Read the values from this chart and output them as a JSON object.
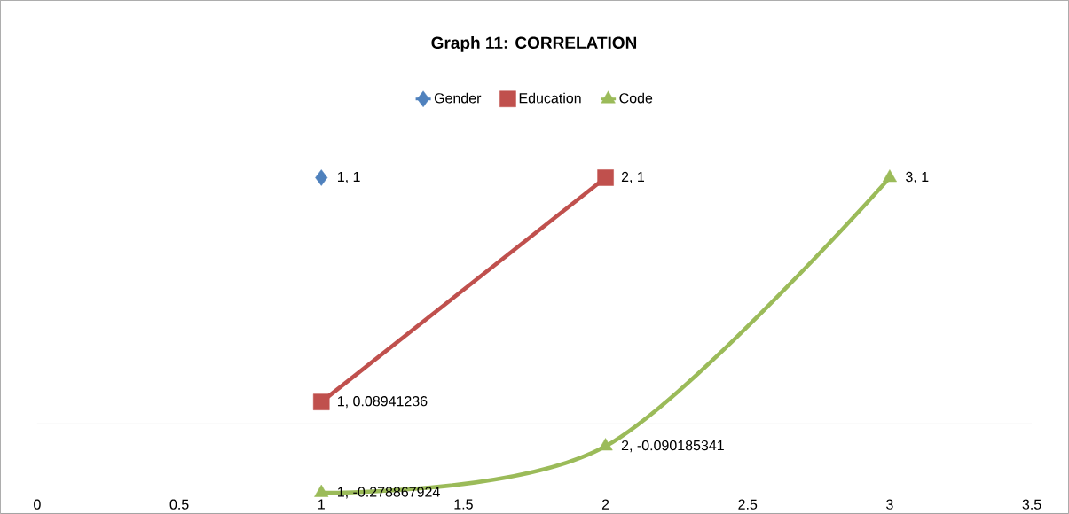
{
  "chart_data": {
    "type": "line",
    "title": "Graph 11: CORRELATION",
    "legend": "top",
    "line_style": "solid",
    "tick_labels": "x",
    "xlim": [
      0,
      3.5
    ],
    "xticks": [
      0,
      0.5,
      1,
      1.5,
      2,
      2.5,
      3,
      3.5
    ],
    "series": [
      {
        "name": "Gender",
        "color": "#4f81bd",
        "marker": "diamond",
        "x": [
          1
        ],
        "values": [
          1
        ],
        "value_labels": [
          "1, 1"
        ]
      },
      {
        "name": "Education",
        "color": "#c0504d",
        "marker": "square",
        "x": [
          1,
          2
        ],
        "values": [
          0.08941236,
          1
        ],
        "value_labels": [
          "1, 0.08941236",
          "2, 1"
        ]
      },
      {
        "name": "Code",
        "color": "#9bbb59",
        "marker": "triangle",
        "x": [
          1,
          2,
          3
        ],
        "values": [
          -0.278867924,
          -0.090185341,
          1
        ],
        "value_labels": [
          "1, -0.278867924",
          "2, -0.090185341",
          "3, 1"
        ]
      }
    ]
  }
}
